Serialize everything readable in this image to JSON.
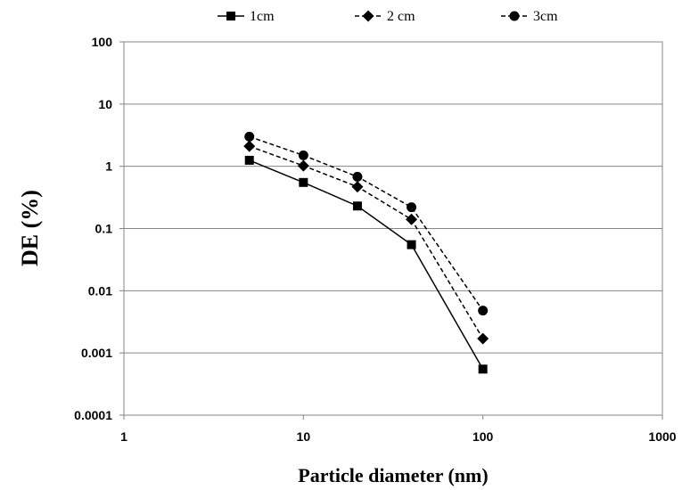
{
  "chart_data": {
    "type": "line",
    "title": "",
    "xlabel": "Particle diameter (nm)",
    "ylabel": "DE (%)",
    "xscale": "log",
    "yscale": "log",
    "xlim": [
      1,
      1000
    ],
    "ylim": [
      0.0001,
      100
    ],
    "grid": "horizontal major gridlines",
    "legend_position": "top",
    "x_ticks": [
      "1",
      "10",
      "100",
      "1000"
    ],
    "y_ticks": [
      "100",
      "10",
      "1",
      "0.1",
      "0.01",
      "0.001",
      "0.0001"
    ],
    "x": [
      5,
      10,
      20,
      40,
      100
    ],
    "series": [
      {
        "name": "1cm",
        "marker": "square",
        "line": "solid",
        "values": [
          1.25,
          0.55,
          0.23,
          0.055,
          0.00055
        ]
      },
      {
        "name": "2 cm",
        "marker": "diamond",
        "line": "dashed",
        "values": [
          2.1,
          1.02,
          0.47,
          0.14,
          0.0017
        ]
      },
      {
        "name": "3cm",
        "marker": "circle",
        "line": "dashed",
        "values": [
          3.0,
          1.5,
          0.68,
          0.22,
          0.0048
        ]
      }
    ]
  }
}
